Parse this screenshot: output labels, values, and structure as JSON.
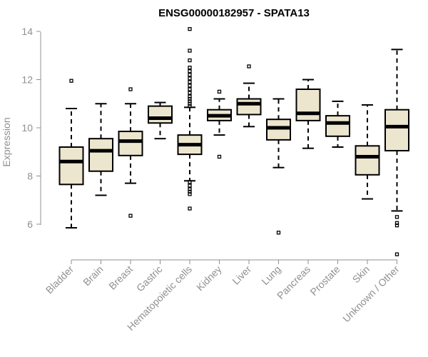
{
  "chart_data": {
    "type": "boxplot",
    "title": "ENSG00000182957 - SPATA13",
    "xlabel": "",
    "ylabel": "Expression",
    "ylim": [
      4.6,
      14.1
    ],
    "yticks": [
      6,
      8,
      10,
      12,
      14
    ],
    "ytick_labels": [
      "6",
      "8",
      "10",
      "12",
      "14"
    ],
    "box_color": "#ede6cf",
    "categories": [
      "Bladder",
      "Brain",
      "Breast",
      "Gastric",
      "Hematopoietic cells",
      "Kidney",
      "Liver",
      "Lung",
      "Pancreas",
      "Prostate",
      "Skin",
      "Unknown / Other"
    ],
    "boxes": [
      {
        "min": 5.85,
        "q1": 7.65,
        "median": 8.6,
        "q3": 9.2,
        "max": 10.8,
        "outliers": [
          11.95
        ]
      },
      {
        "min": 7.2,
        "q1": 8.2,
        "median": 9.05,
        "q3": 9.55,
        "max": 11.0,
        "outliers": []
      },
      {
        "min": 7.7,
        "q1": 8.85,
        "median": 9.45,
        "q3": 9.85,
        "max": 11.0,
        "outliers": [
          6.35,
          11.6
        ]
      },
      {
        "min": 9.55,
        "q1": 10.2,
        "median": 10.4,
        "q3": 10.9,
        "max": 11.05,
        "outliers": []
      },
      {
        "min": 7.8,
        "q1": 8.9,
        "median": 9.3,
        "q3": 9.7,
        "max": 10.85,
        "outliers": [
          6.65,
          7.25,
          7.35,
          7.45,
          7.6,
          7.75,
          10.9,
          11.0,
          11.1,
          11.2,
          11.3,
          11.45,
          11.6,
          11.75,
          11.9,
          12.05,
          12.2,
          12.35,
          12.5,
          12.8,
          13.2,
          14.1
        ]
      },
      {
        "min": 9.7,
        "q1": 10.3,
        "median": 10.5,
        "q3": 10.75,
        "max": 11.2,
        "outliers": [
          8.8,
          11.5
        ]
      },
      {
        "min": 10.05,
        "q1": 10.55,
        "median": 11.0,
        "q3": 11.2,
        "max": 11.85,
        "outliers": [
          12.55
        ]
      },
      {
        "min": 8.35,
        "q1": 9.5,
        "median": 10.0,
        "q3": 10.35,
        "max": 11.2,
        "outliers": [
          5.65
        ]
      },
      {
        "min": 9.15,
        "q1": 10.3,
        "median": 10.6,
        "q3": 11.6,
        "max": 12.0,
        "outliers": []
      },
      {
        "min": 9.2,
        "q1": 9.65,
        "median": 10.2,
        "q3": 10.5,
        "max": 11.1,
        "outliers": []
      },
      {
        "min": 7.05,
        "q1": 8.05,
        "median": 8.8,
        "q3": 9.25,
        "max": 10.95,
        "outliers": []
      },
      {
        "min": 6.55,
        "q1": 9.05,
        "median": 10.05,
        "q3": 10.75,
        "max": 13.25,
        "outliers": [
          4.75,
          5.95,
          6.05,
          6.3
        ]
      }
    ]
  }
}
